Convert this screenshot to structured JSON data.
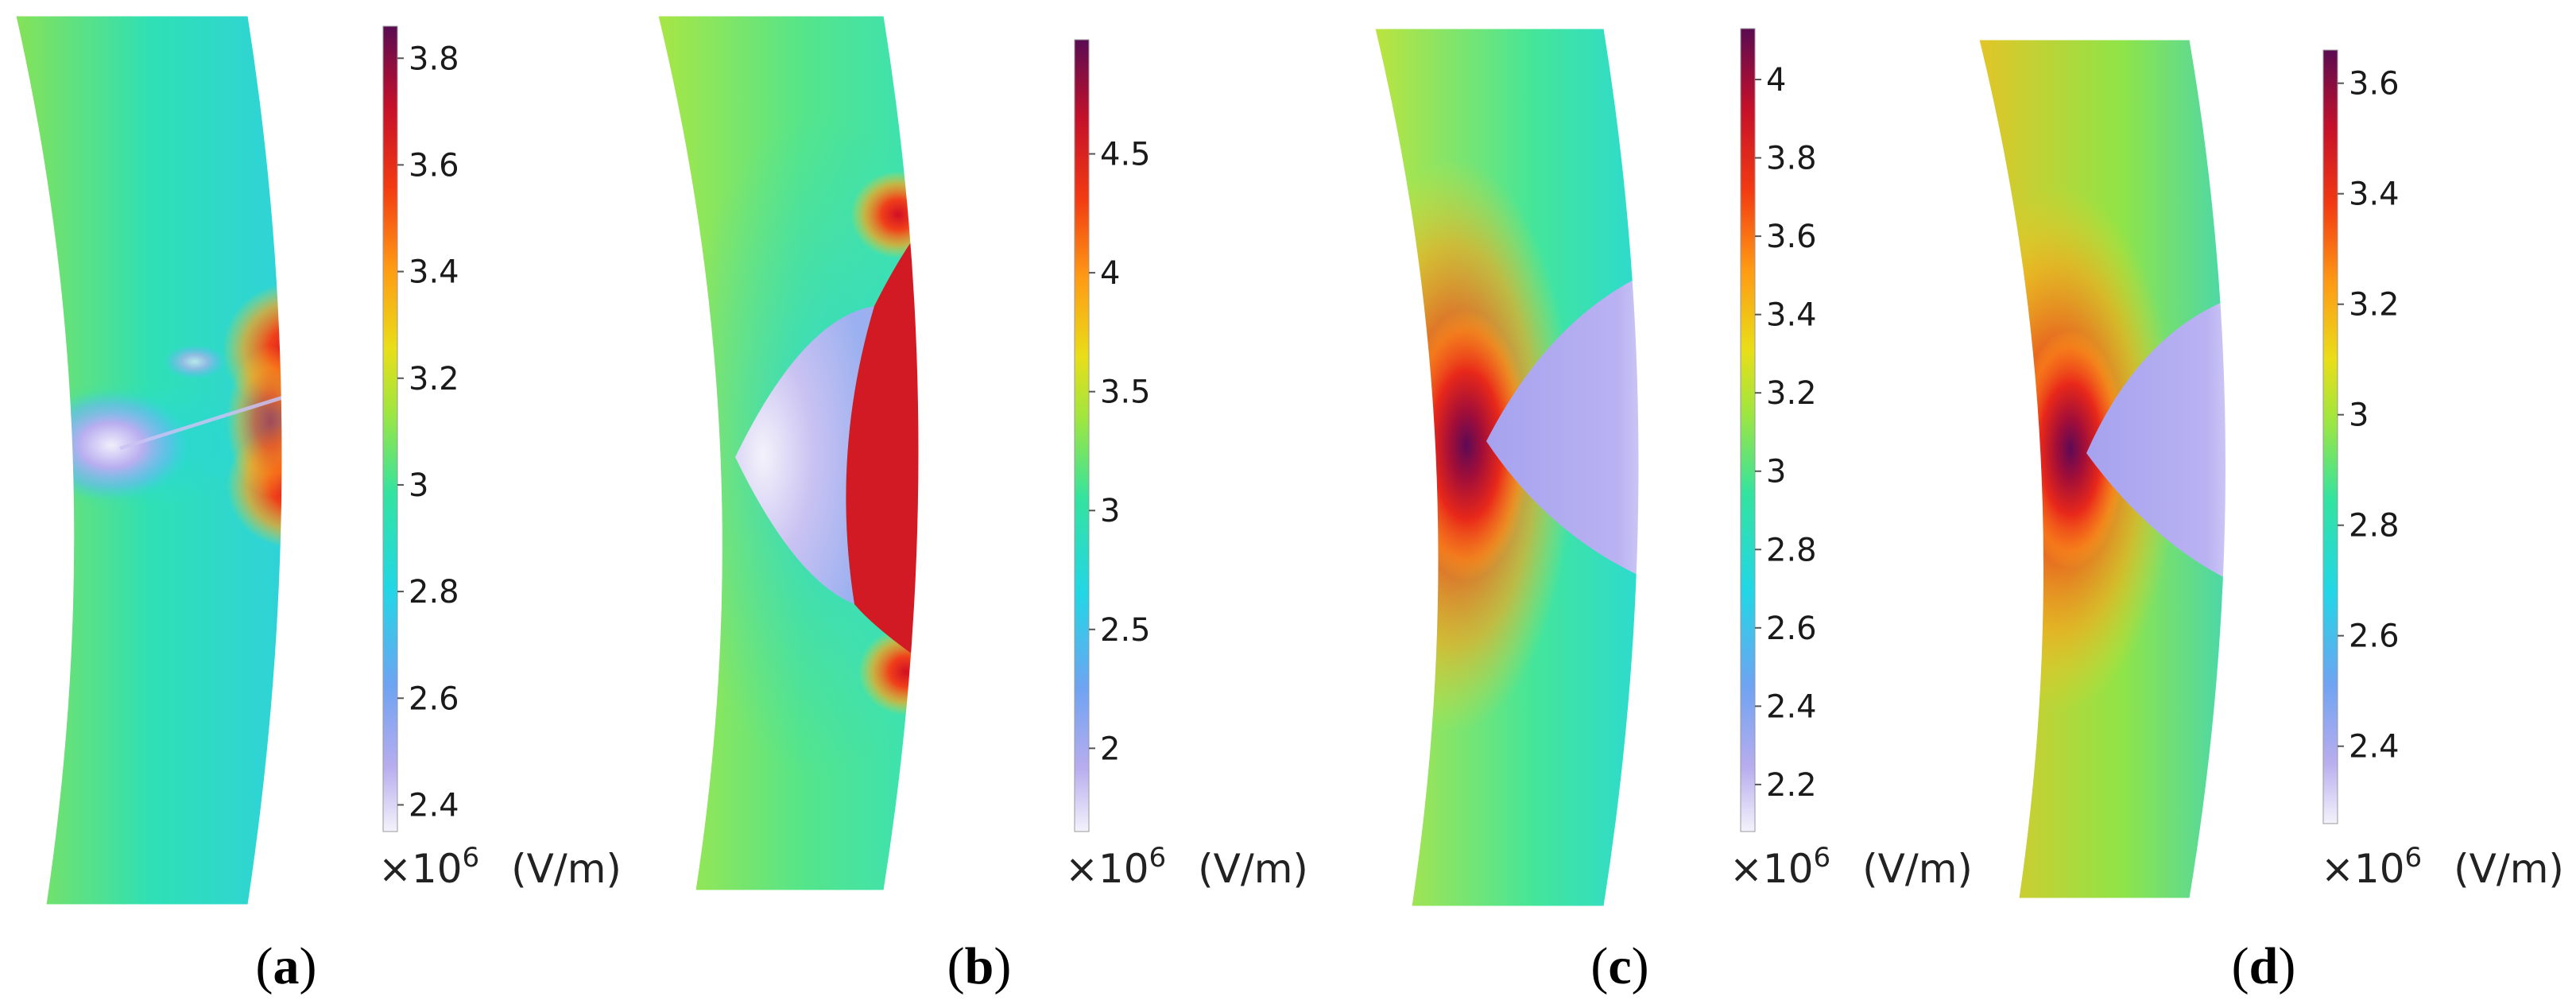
{
  "figure": {
    "panels": [
      {
        "id": "a",
        "caption_open": "(",
        "caption_letter": "a",
        "caption_close": ")",
        "colorbar": {
          "min": 2.35,
          "max": 3.86,
          "ticks": [
            "3.8",
            "3.6",
            "3.4",
            "3.2",
            "3",
            "2.8",
            "2.6",
            "2.4"
          ],
          "tick_values": [
            3.8,
            3.6,
            3.4,
            3.2,
            3.0,
            2.8,
            2.6,
            2.4
          ],
          "multiplier_base": "×10",
          "multiplier_exp": "6",
          "unit": "(V/m)"
        }
      },
      {
        "id": "b",
        "caption_open": "(",
        "caption_letter": "b",
        "caption_close": ")",
        "colorbar": {
          "min": 1.65,
          "max": 4.98,
          "ticks": [
            "4.5",
            "4",
            "3.5",
            "3",
            "2.5",
            "2"
          ],
          "tick_values": [
            4.5,
            4.0,
            3.5,
            3.0,
            2.5,
            2.0
          ],
          "multiplier_base": "×10",
          "multiplier_exp": "6",
          "unit": "(V/m)"
        }
      },
      {
        "id": "c",
        "caption_open": "(",
        "caption_letter": "c",
        "caption_close": ")",
        "colorbar": {
          "min": 2.08,
          "max": 4.13,
          "ticks": [
            "4",
            "3.8",
            "3.6",
            "3.4",
            "3.2",
            "3",
            "2.8",
            "2.6",
            "2.4",
            "2.2"
          ],
          "tick_values": [
            4.0,
            3.8,
            3.6,
            3.4,
            3.2,
            3.0,
            2.8,
            2.6,
            2.4,
            2.2
          ],
          "multiplier_base": "×10",
          "multiplier_exp": "6",
          "unit": "(V/m)"
        }
      },
      {
        "id": "d",
        "caption_open": "(",
        "caption_letter": "d",
        "caption_close": ")",
        "colorbar": {
          "min": 2.26,
          "max": 3.66,
          "ticks": [
            "3.6",
            "3.4",
            "3.2",
            "3",
            "2.8",
            "2.6",
            "2.4"
          ],
          "tick_values": [
            3.6,
            3.4,
            3.2,
            3.0,
            2.8,
            2.6,
            2.4
          ],
          "multiplier_base": "×10",
          "multiplier_exp": "6",
          "unit": "(V/m)"
        }
      }
    ]
  }
}
